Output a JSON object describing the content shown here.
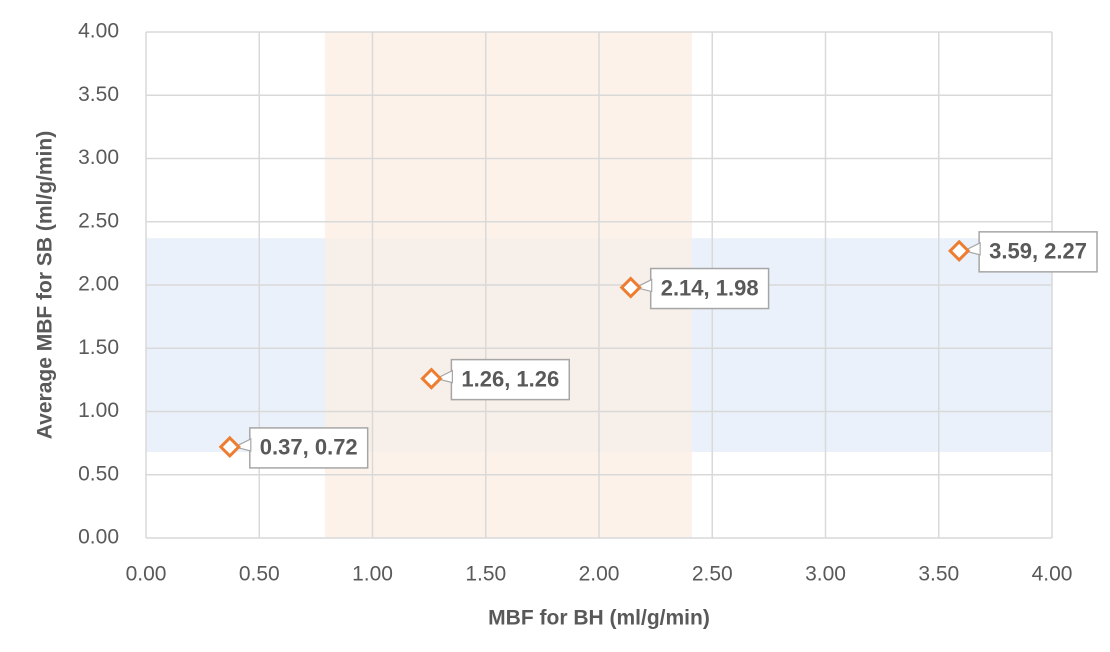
{
  "chart_data": {
    "type": "scatter",
    "x_label": "MBF for BH (ml/g/min)",
    "y_label": "Average MBF for SB (ml/g/min)",
    "series": [
      {
        "color": "#ed7d31",
        "x": [
          0.37,
          1.26,
          2.14,
          3.59
        ],
        "values": [
          0.72,
          1.26,
          1.98,
          2.27
        ],
        "value_labels": [
          "0.37, 0.72",
          "1.26, 1.26",
          "2.14, 1.98",
          "3.59, 2.27"
        ]
      }
    ],
    "x_band": {
      "range": [
        0.79,
        2.41
      ],
      "color": "#fbeee3"
    },
    "y_band": {
      "range": [
        0.68,
        2.37
      ],
      "color": "#eaf1fa"
    },
    "xlim": [
      0,
      4
    ],
    "ylim": [
      0,
      4
    ],
    "xticks": [
      {
        "value": 0,
        "label": "0.00"
      },
      {
        "value": 0.5,
        "label": "0.50"
      },
      {
        "value": 1,
        "label": "1.00"
      },
      {
        "value": 1.5,
        "label": "1.50"
      },
      {
        "value": 2,
        "label": "2.00"
      },
      {
        "value": 2.5,
        "label": "2.50"
      },
      {
        "value": 3,
        "label": "3.00"
      },
      {
        "value": 3.5,
        "label": "3.50"
      },
      {
        "value": 4,
        "label": "4.00"
      }
    ],
    "yticks": [
      {
        "value": 0,
        "label": "0.00"
      },
      {
        "value": 0.5,
        "label": "0.50"
      },
      {
        "value": 1,
        "label": "1.00"
      },
      {
        "value": 1.5,
        "label": "1.50"
      },
      {
        "value": 2,
        "label": "2.00"
      },
      {
        "value": 2.5,
        "label": "2.50"
      },
      {
        "value": 3,
        "label": "3.00"
      },
      {
        "value": 3.5,
        "label": "3.50"
      },
      {
        "value": 4,
        "label": "4.00"
      }
    ],
    "grid": true
  }
}
